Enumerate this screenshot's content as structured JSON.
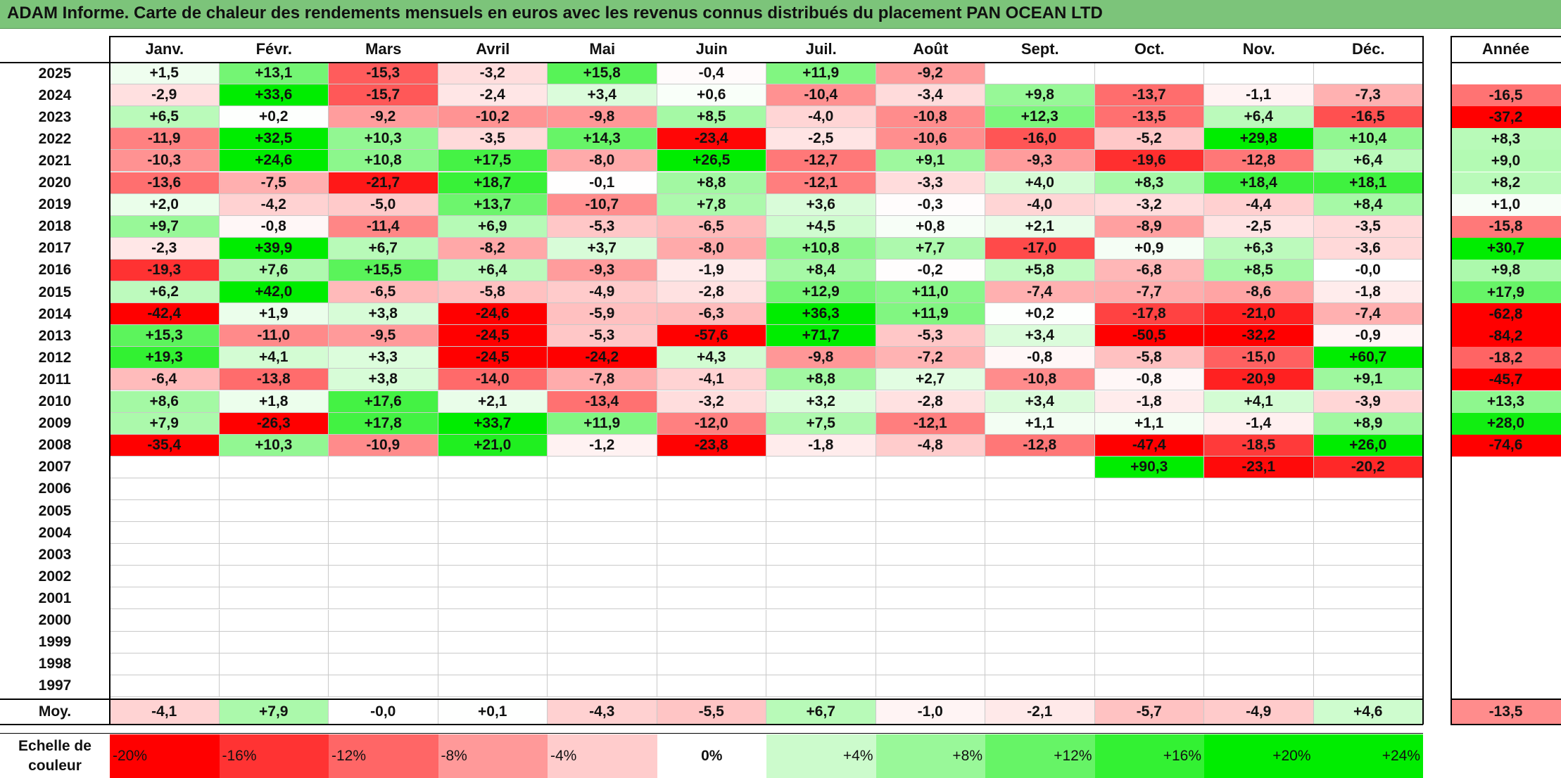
{
  "title": "ADAM Informe. Carte de chaleur des rendements mensuels en euros avec les revenus connus distribués du placement PAN OCEAN LTD",
  "chart_data": {
    "type": "heatmap",
    "title": "ADAM Informe. Carte de chaleur des rendements mensuels en euros avec les revenus connus distribués du placement PAN OCEAN LTD",
    "months": [
      "Janv.",
      "Févr.",
      "Mars",
      "Avril",
      "Mai",
      "Juin",
      "Juil.",
      "Août",
      "Sept.",
      "Oct.",
      "Nov.",
      "Déc."
    ],
    "year_header": "Année",
    "rows": [
      {
        "year": "2025",
        "values": [
          "+1,5",
          "+13,1",
          "-15,3",
          "-3,2",
          "+15,8",
          "-0,4",
          "+11,9",
          "-9,2",
          "",
          "",
          "",
          ""
        ],
        "annual": ""
      },
      {
        "year": "2024",
        "values": [
          "-2,9",
          "+33,6",
          "-15,7",
          "-2,4",
          "+3,4",
          "+0,6",
          "-10,4",
          "-3,4",
          "+9,8",
          "-13,7",
          "-1,1",
          "-7,3"
        ],
        "annual": "-16,5"
      },
      {
        "year": "2023",
        "values": [
          "+6,5",
          "+0,2",
          "-9,2",
          "-10,2",
          "-9,8",
          "+8,5",
          "-4,0",
          "-10,8",
          "+12,3",
          "-13,5",
          "+6,4",
          "-16,5"
        ],
        "annual": "-37,2"
      },
      {
        "year": "2022",
        "values": [
          "-11,9",
          "+32,5",
          "+10,3",
          "-3,5",
          "+14,3",
          "-23,4",
          "-2,5",
          "-10,6",
          "-16,0",
          "-5,2",
          "+29,8",
          "+10,4"
        ],
        "annual": "+8,3"
      },
      {
        "year": "2021",
        "values": [
          "-10,3",
          "+24,6",
          "+10,8",
          "+17,5",
          "-8,0",
          "+26,5",
          "-12,7",
          "+9,1",
          "-9,3",
          "-19,6",
          "-12,8",
          "+6,4"
        ],
        "annual": "+9,0"
      },
      {
        "year": "2020",
        "values": [
          "-13,6",
          "-7,5",
          "-21,7",
          "+18,7",
          "-0,1",
          "+8,8",
          "-12,1",
          "-3,3",
          "+4,0",
          "+8,3",
          "+18,4",
          "+18,1"
        ],
        "annual": "+8,2"
      },
      {
        "year": "2019",
        "values": [
          "+2,0",
          "-4,2",
          "-5,0",
          "+13,7",
          "-10,7",
          "+7,8",
          "+3,6",
          "-0,3",
          "-4,0",
          "-3,2",
          "-4,4",
          "+8,4"
        ],
        "annual": "+1,0"
      },
      {
        "year": "2018",
        "values": [
          "+9,7",
          "-0,8",
          "-11,4",
          "+6,9",
          "-5,3",
          "-6,5",
          "+4,5",
          "+0,8",
          "+2,1",
          "-8,9",
          "-2,5",
          "-3,5"
        ],
        "annual": "-15,8"
      },
      {
        "year": "2017",
        "values": [
          "-2,3",
          "+39,9",
          "+6,7",
          "-8,2",
          "+3,7",
          "-8,0",
          "+10,8",
          "+7,7",
          "-17,0",
          "+0,9",
          "+6,3",
          "-3,6"
        ],
        "annual": "+30,7"
      },
      {
        "year": "2016",
        "values": [
          "-19,3",
          "+7,6",
          "+15,5",
          "+6,4",
          "-9,3",
          "-1,9",
          "+8,4",
          "-0,2",
          "+5,8",
          "-6,8",
          "+8,5",
          "-0,0"
        ],
        "annual": "+9,8"
      },
      {
        "year": "2015",
        "values": [
          "+6,2",
          "+42,0",
          "-6,5",
          "-5,8",
          "-4,9",
          "-2,8",
          "+12,9",
          "+11,0",
          "-7,4",
          "-7,7",
          "-8,6",
          "-1,8"
        ],
        "annual": "+17,9"
      },
      {
        "year": "2014",
        "values": [
          "-42,4",
          "+1,9",
          "+3,8",
          "-24,6",
          "-5,9",
          "-6,3",
          "+36,3",
          "+11,9",
          "+0,2",
          "-17,8",
          "-21,0",
          "-7,4"
        ],
        "annual": "-62,8"
      },
      {
        "year": "2013",
        "values": [
          "+15,3",
          "-11,0",
          "-9,5",
          "-24,5",
          "-5,3",
          "-57,6",
          "+71,7",
          "-5,3",
          "+3,4",
          "-50,5",
          "-32,2",
          "-0,9"
        ],
        "annual": "-84,2"
      },
      {
        "year": "2012",
        "values": [
          "+19,3",
          "+4,1",
          "+3,3",
          "-24,5",
          "-24,2",
          "+4,3",
          "-9,8",
          "-7,2",
          "-0,8",
          "-5,8",
          "-15,0",
          "+60,7"
        ],
        "annual": "-18,2"
      },
      {
        "year": "2011",
        "values": [
          "-6,4",
          "-13,8",
          "+3,8",
          "-14,0",
          "-7,8",
          "-4,1",
          "+8,8",
          "+2,7",
          "-10,8",
          "-0,8",
          "-20,9",
          "+9,1"
        ],
        "annual": "-45,7"
      },
      {
        "year": "2010",
        "values": [
          "+8,6",
          "+1,8",
          "+17,6",
          "+2,1",
          "-13,4",
          "-3,2",
          "+3,2",
          "-2,8",
          "+3,4",
          "-1,8",
          "+4,1",
          "-3,9"
        ],
        "annual": "+13,3"
      },
      {
        "year": "2009",
        "values": [
          "+7,9",
          "-26,3",
          "+17,8",
          "+33,7",
          "+11,9",
          "-12,0",
          "+7,5",
          "-12,1",
          "+1,1",
          "+1,1",
          "-1,4",
          "+8,9"
        ],
        "annual": "+28,0"
      },
      {
        "year": "2008",
        "values": [
          "-35,4",
          "+10,3",
          "-10,9",
          "+21,0",
          "-1,2",
          "-23,8",
          "-1,8",
          "-4,8",
          "-12,8",
          "-47,4",
          "-18,5",
          "+26,0"
        ],
        "annual": "-74,6"
      },
      {
        "year": "2007",
        "values": [
          "",
          "",
          "",
          "",
          "",
          "",
          "",
          "",
          "",
          "+90,3",
          "-23,1",
          "-20,2"
        ],
        "annual": ""
      },
      {
        "year": "2006",
        "values": [
          "",
          "",
          "",
          "",
          "",
          "",
          "",
          "",
          "",
          "",
          "",
          ""
        ],
        "annual": ""
      },
      {
        "year": "2005",
        "values": [
          "",
          "",
          "",
          "",
          "",
          "",
          "",
          "",
          "",
          "",
          "",
          ""
        ],
        "annual": ""
      },
      {
        "year": "2004",
        "values": [
          "",
          "",
          "",
          "",
          "",
          "",
          "",
          "",
          "",
          "",
          "",
          ""
        ],
        "annual": ""
      },
      {
        "year": "2003",
        "values": [
          "",
          "",
          "",
          "",
          "",
          "",
          "",
          "",
          "",
          "",
          "",
          ""
        ],
        "annual": ""
      },
      {
        "year": "2002",
        "values": [
          "",
          "",
          "",
          "",
          "",
          "",
          "",
          "",
          "",
          "",
          "",
          ""
        ],
        "annual": ""
      },
      {
        "year": "2001",
        "values": [
          "",
          "",
          "",
          "",
          "",
          "",
          "",
          "",
          "",
          "",
          "",
          ""
        ],
        "annual": ""
      },
      {
        "year": "2000",
        "values": [
          "",
          "",
          "",
          "",
          "",
          "",
          "",
          "",
          "",
          "",
          "",
          ""
        ],
        "annual": ""
      },
      {
        "year": "1999",
        "values": [
          "",
          "",
          "",
          "",
          "",
          "",
          "",
          "",
          "",
          "",
          "",
          ""
        ],
        "annual": ""
      },
      {
        "year": "1998",
        "values": [
          "",
          "",
          "",
          "",
          "",
          "",
          "",
          "",
          "",
          "",
          "",
          ""
        ],
        "annual": ""
      },
      {
        "year": "1997",
        "values": [
          "",
          "",
          "",
          "",
          "",
          "",
          "",
          "",
          "",
          "",
          "",
          ""
        ],
        "annual": ""
      }
    ],
    "average": {
      "label": "Moy.",
      "values": [
        "-4,1",
        "+7,9",
        "-0,0",
        "+0,1",
        "-4,3",
        "-5,5",
        "+6,7",
        "-1,0",
        "-2,1",
        "-5,7",
        "-4,9",
        "+4,6"
      ],
      "annual": "-13,5"
    },
    "scale": {
      "label_line1": "Echelle de",
      "label_line2": "couleur",
      "steps": [
        "-20%",
        "-16%",
        "-12%",
        "-8%",
        "-4%",
        "0%",
        "+4%",
        "+8%",
        "+12%",
        "+16%",
        "+20%",
        "+24%"
      ]
    },
    "colors": {
      "negative_max": "#ff0000",
      "neutral": "#ffffff",
      "positive_max": "#00ee00",
      "title_bg": "#7cc47a"
    }
  }
}
